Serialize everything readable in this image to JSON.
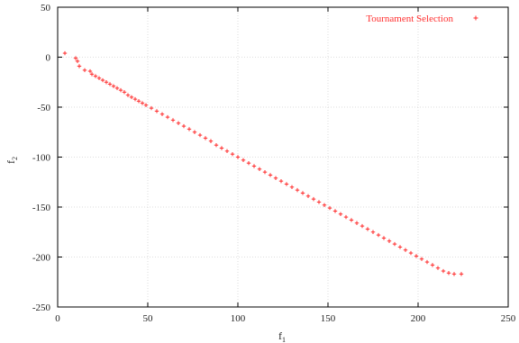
{
  "chart_data": {
    "type": "scatter",
    "xlabel_base": "f",
    "xlabel_sub": "1",
    "ylabel_base": "f",
    "ylabel_sub": "2",
    "xlim": [
      0,
      250
    ],
    "ylim": [
      -250,
      50
    ],
    "x_ticks": [
      0,
      50,
      100,
      150,
      200,
      250
    ],
    "y_ticks": [
      50,
      0,
      -50,
      -100,
      -150,
      -200,
      -250
    ],
    "grid": true,
    "legend_position": "top-right",
    "color": "#ff2a2a",
    "series": [
      {
        "name": "Tournament Selection",
        "marker": "+",
        "points": [
          [
            4,
            4
          ],
          [
            10,
            -1
          ],
          [
            11,
            -4
          ],
          [
            12,
            -9
          ],
          [
            15,
            -13
          ],
          [
            18,
            -14
          ],
          [
            19,
            -17
          ],
          [
            21,
            -19
          ],
          [
            23,
            -21
          ],
          [
            25,
            -23
          ],
          [
            27,
            -25
          ],
          [
            29,
            -27
          ],
          [
            31,
            -29
          ],
          [
            33,
            -31
          ],
          [
            35,
            -33
          ],
          [
            37,
            -35
          ],
          [
            39,
            -38
          ],
          [
            41,
            -40
          ],
          [
            43,
            -42
          ],
          [
            45,
            -44
          ],
          [
            47,
            -46
          ],
          [
            49,
            -48
          ],
          [
            52,
            -51
          ],
          [
            55,
            -54
          ],
          [
            58,
            -57
          ],
          [
            61,
            -60
          ],
          [
            64,
            -63
          ],
          [
            67,
            -66
          ],
          [
            70,
            -69
          ],
          [
            73,
            -72
          ],
          [
            76,
            -75
          ],
          [
            79,
            -78
          ],
          [
            82,
            -81
          ],
          [
            85,
            -84
          ],
          [
            88,
            -88
          ],
          [
            91,
            -91
          ],
          [
            94,
            -94
          ],
          [
            97,
            -97
          ],
          [
            100,
            -100
          ],
          [
            103,
            -103
          ],
          [
            106,
            -106
          ],
          [
            109,
            -109
          ],
          [
            112,
            -112
          ],
          [
            115,
            -115
          ],
          [
            118,
            -118
          ],
          [
            121,
            -121
          ],
          [
            124,
            -124
          ],
          [
            127,
            -127
          ],
          [
            130,
            -130
          ],
          [
            133,
            -133
          ],
          [
            136,
            -136
          ],
          [
            139,
            -139
          ],
          [
            142,
            -142
          ],
          [
            145,
            -145
          ],
          [
            148,
            -148
          ],
          [
            151,
            -151
          ],
          [
            154,
            -154
          ],
          [
            157,
            -157
          ],
          [
            160,
            -160
          ],
          [
            163,
            -163
          ],
          [
            166,
            -166
          ],
          [
            169,
            -169
          ],
          [
            172,
            -172
          ],
          [
            175,
            -175
          ],
          [
            178,
            -178
          ],
          [
            181,
            -181
          ],
          [
            184,
            -184
          ],
          [
            187,
            -187
          ],
          [
            190,
            -190
          ],
          [
            193,
            -193
          ],
          [
            196,
            -196
          ],
          [
            199,
            -199
          ],
          [
            202,
            -202
          ],
          [
            205,
            -205
          ],
          [
            208,
            -208
          ],
          [
            211,
            -211
          ],
          [
            214,
            -214
          ],
          [
            217,
            -216
          ],
          [
            220,
            -217
          ],
          [
            224,
            -217
          ]
        ]
      }
    ]
  }
}
